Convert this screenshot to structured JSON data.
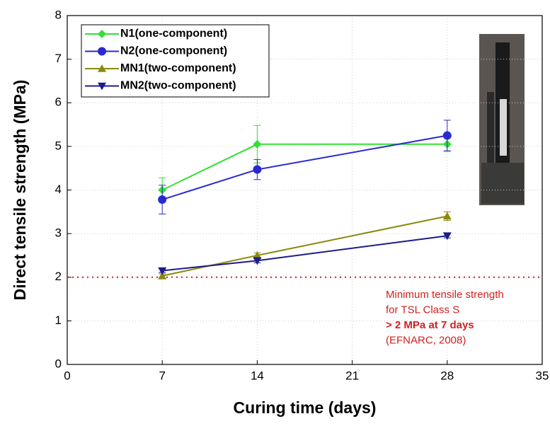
{
  "chart_data": {
    "type": "line",
    "x_label": "Curing time (days)",
    "y_label": "Direct tensile strength (MPa)",
    "x": [
      7,
      14,
      28
    ],
    "series": [
      {
        "name": "N1(one-component)",
        "color": "#33e033",
        "marker": "diamond",
        "values": [
          4.0,
          5.05,
          5.05
        ],
        "errors": [
          0.28,
          0.43,
          0.17
        ]
      },
      {
        "name": "N2(one-component)",
        "color": "#2a2ad0",
        "marker": "circle",
        "values": [
          3.78,
          4.47,
          5.25
        ],
        "errors": [
          0.33,
          0.23,
          0.35
        ]
      },
      {
        "name": "MN1(two-component)",
        "color": "#8a8a10",
        "marker": "triangle-up",
        "values": [
          2.03,
          2.5,
          3.4
        ],
        "errors": [
          0.05,
          0.06,
          0.1
        ]
      },
      {
        "name": "MN2(two-component)",
        "color": "#1c1c8c",
        "marker": "triangle-down",
        "values": [
          2.15,
          2.38,
          2.95
        ],
        "errors": [
          0.04,
          0.05,
          0.05
        ]
      }
    ],
    "xlim": [
      0,
      35
    ],
    "xticks": [
      0,
      7,
      14,
      21,
      28,
      35
    ],
    "ylim": [
      0,
      8
    ],
    "yticks": [
      0,
      1,
      2,
      3,
      4,
      5,
      6,
      7,
      8
    ],
    "grid": true,
    "legend": "upper left",
    "reference_line": {
      "value": 2,
      "color": "#d02020"
    },
    "annotation": [
      "Minimum tensile strength",
      "for TSL Class S",
      "> 2 MPa at 7 days",
      "(EFNARC, 2008)"
    ]
  }
}
